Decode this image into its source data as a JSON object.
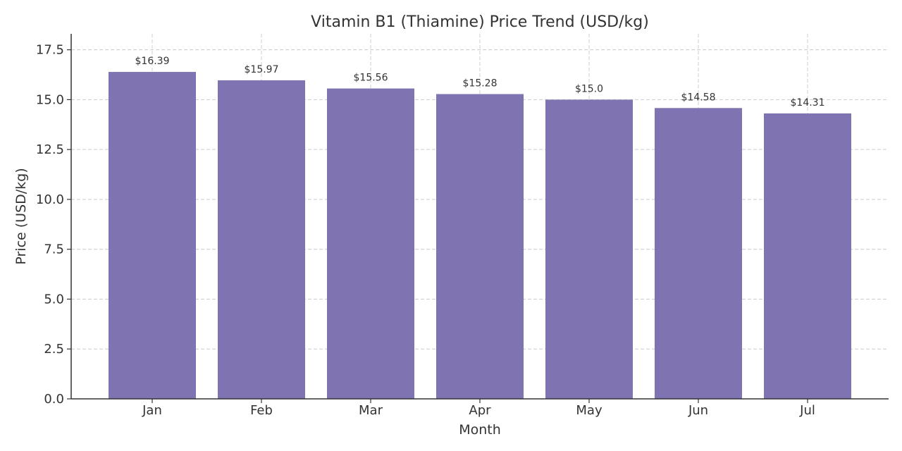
{
  "chart_data": {
    "type": "bar",
    "title": "Vitamin B1 (Thiamine) Price Trend (USD/kg)",
    "xlabel": "Month",
    "ylabel": "Price (USD/kg)",
    "categories": [
      "Jan",
      "Feb",
      "Mar",
      "Apr",
      "May",
      "Jun",
      "Jul"
    ],
    "values": [
      16.39,
      15.97,
      15.56,
      15.28,
      15.0,
      14.58,
      14.31
    ],
    "data_labels": [
      "$16.39",
      "$15.97",
      "$15.56",
      "$15.28",
      "$15.0",
      "$14.58",
      "$14.31"
    ],
    "ylim": [
      0,
      18.3
    ],
    "yticks": [
      0,
      2.5,
      5,
      7.5,
      10,
      12.5,
      15,
      17.5
    ],
    "ytick_labels": [
      "0.0",
      "2.5",
      "5.0",
      "7.5",
      "10.0",
      "12.5",
      "15.0",
      "17.5"
    ],
    "grid": true,
    "bar_color": "#7f74b1"
  }
}
